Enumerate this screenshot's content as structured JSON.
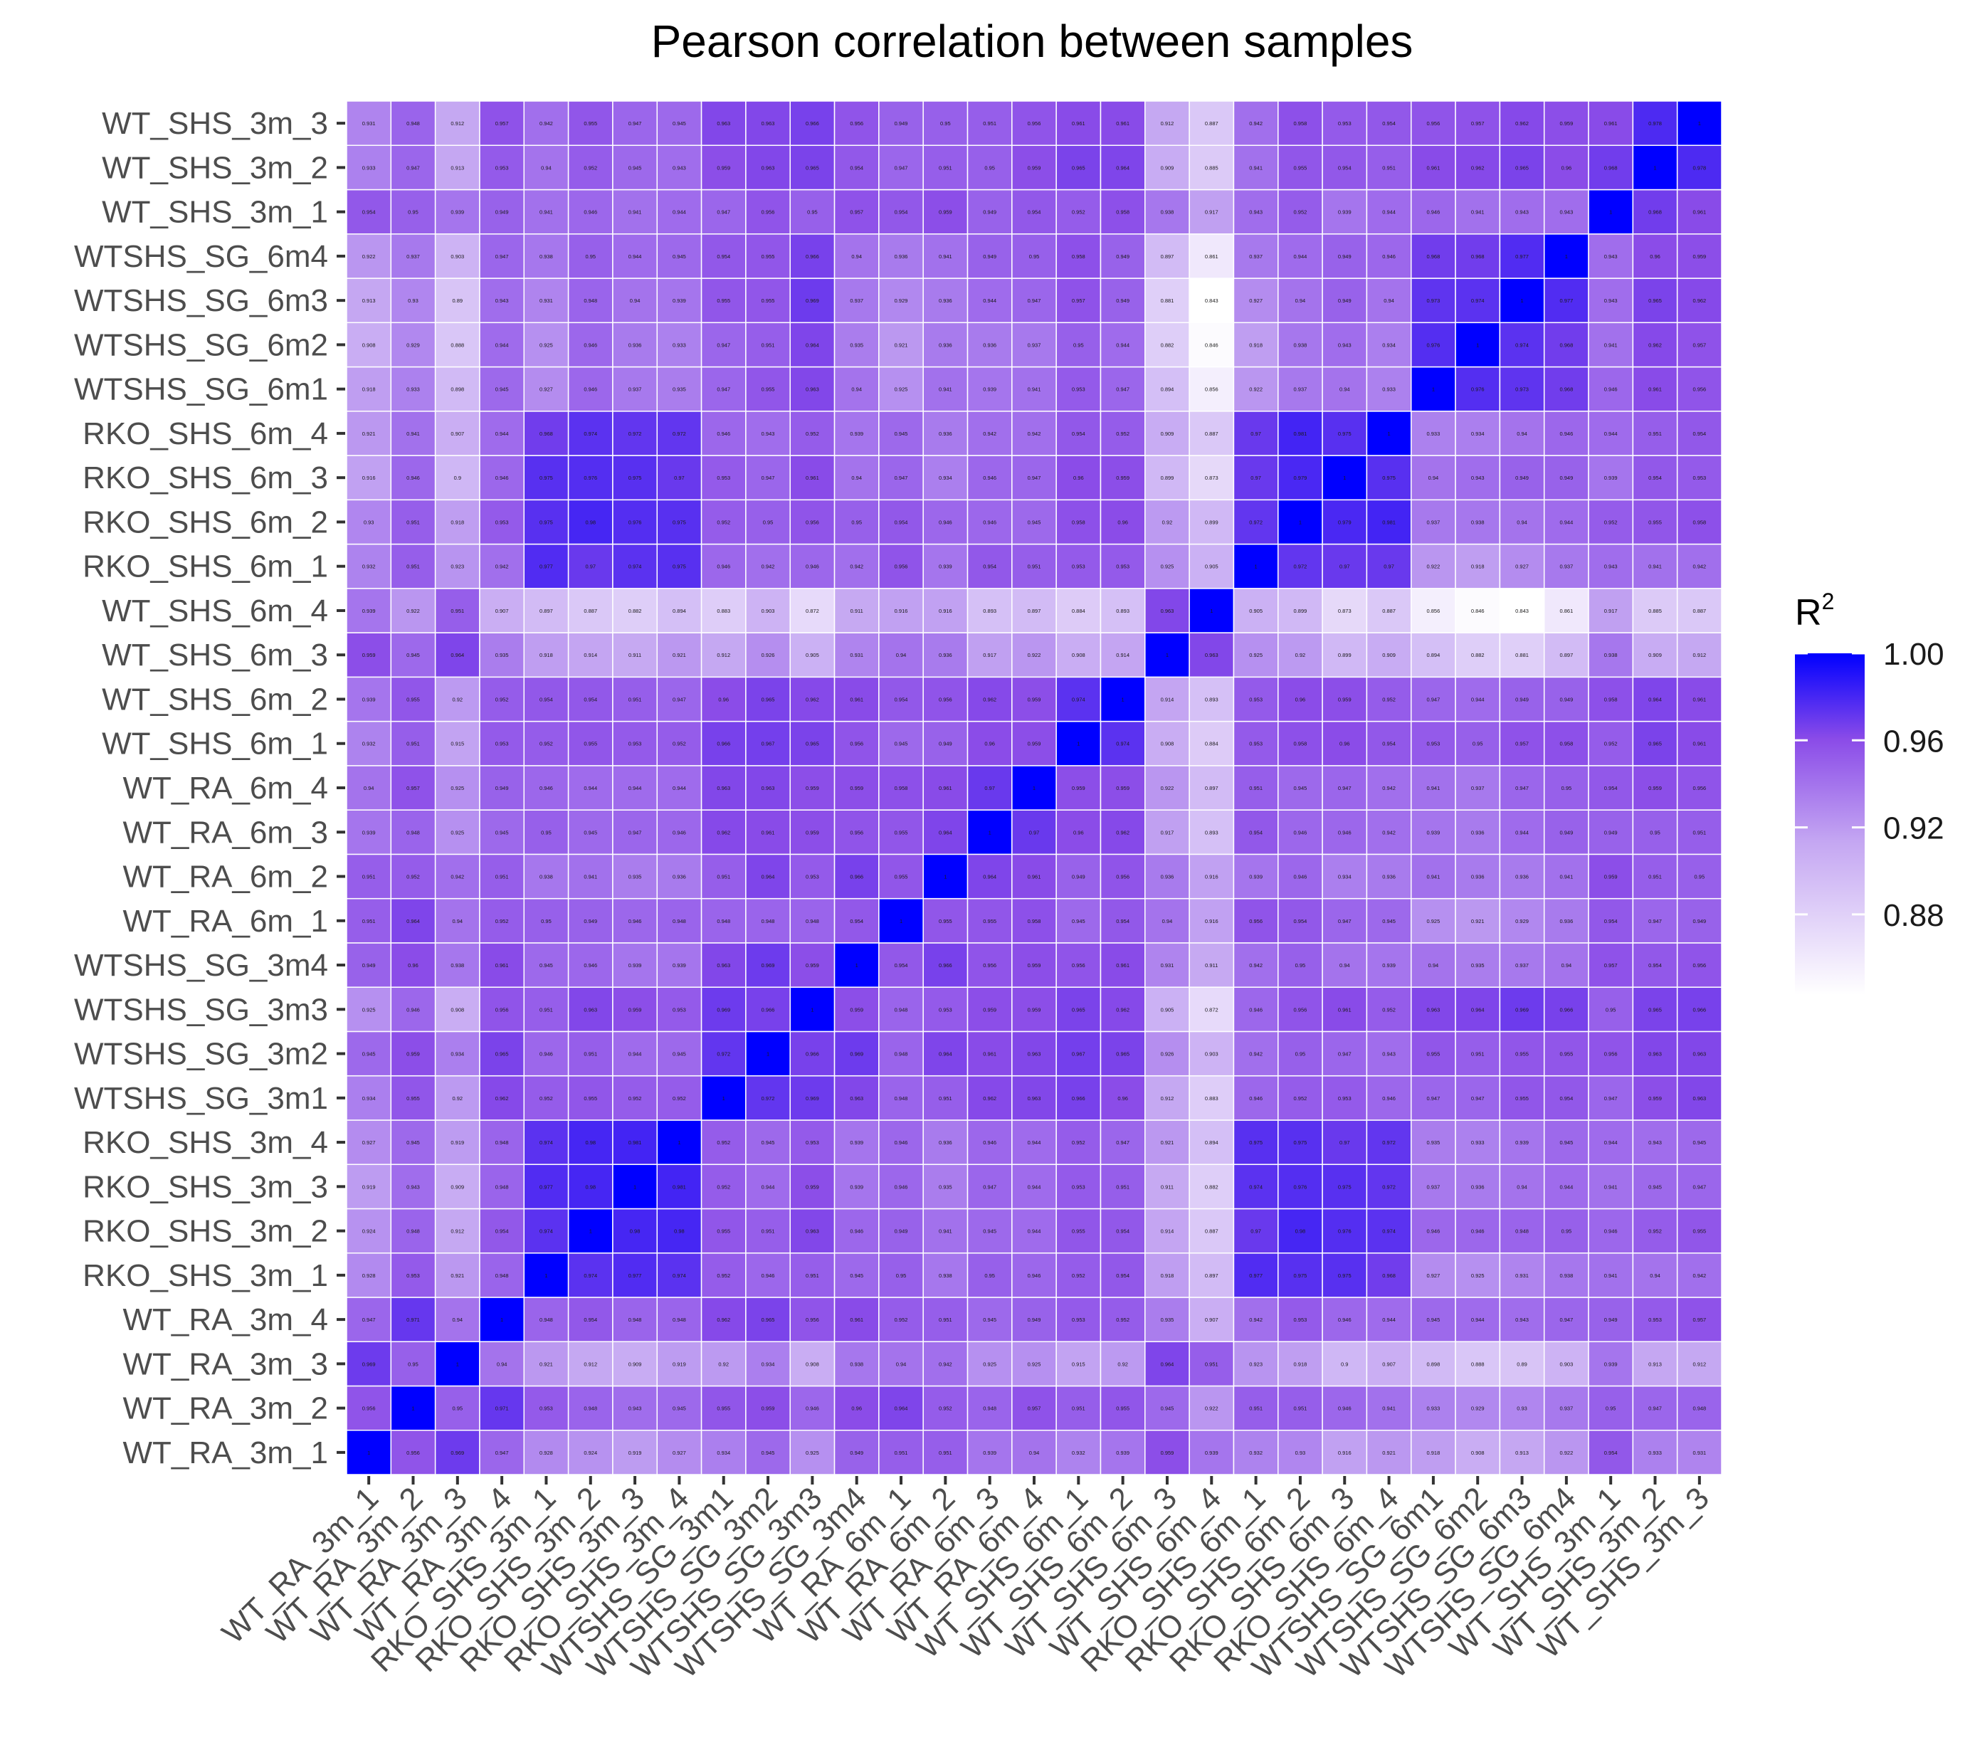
{
  "chart_data": {
    "type": "heatmap",
    "title": "Pearson correlation between samples",
    "labels": [
      "WT_RA_3m_1",
      "WT_RA_3m_2",
      "WT_RA_3m_3",
      "WT_RA_3m_4",
      "RKO_SHS_3m_1",
      "RKO_SHS_3m_2",
      "RKO_SHS_3m_3",
      "RKO_SHS_3m_4",
      "WTSHS_SG_3m1",
      "WTSHS_SG_3m2",
      "WTSHS_SG_3m3",
      "WTSHS_SG_3m4",
      "WT_RA_6m_1",
      "WT_RA_6m_2",
      "WT_RA_6m_3",
      "WT_RA_6m_4",
      "WT_SHS_6m_1",
      "WT_SHS_6m_2",
      "WT_SHS_6m_3",
      "WT_SHS_6m_4",
      "RKO_SHS_6m_1",
      "RKO_SHS_6m_2",
      "RKO_SHS_6m_3",
      "RKO_SHS_6m_4",
      "WTSHS_SG_6m1",
      "WTSHS_SG_6m2",
      "WTSHS_SG_6m3",
      "WTSHS_SG_6m4",
      "WT_SHS_3m_1",
      "WT_SHS_3m_2",
      "WT_SHS_3m_3"
    ],
    "matrix": [
      [
        1,
        0.956,
        0.969,
        0.947,
        0.928,
        0.924,
        0.919,
        0.927,
        0.934,
        0.945,
        0.925,
        0.949,
        0.951,
        0.951,
        0.939,
        0.94,
        0.932,
        0.939,
        0.959,
        0.939,
        0.932,
        0.93,
        0.916,
        0.921,
        0.918,
        0.908,
        0.913,
        0.922,
        0.954,
        0.933,
        0.931
      ],
      [
        0.956,
        1,
        0.95,
        0.971,
        0.953,
        0.948,
        0.943,
        0.945,
        0.955,
        0.959,
        0.946,
        0.96,
        0.964,
        0.952,
        0.948,
        0.957,
        0.951,
        0.955,
        0.945,
        0.922,
        0.951,
        0.951,
        0.946,
        0.941,
        0.933,
        0.929,
        0.93,
        0.937,
        0.95,
        0.947,
        0.948
      ],
      [
        0.969,
        0.95,
        1,
        0.94,
        0.921,
        0.912,
        0.909,
        0.919,
        0.92,
        0.934,
        0.908,
        0.938,
        0.94,
        0.942,
        0.925,
        0.925,
        0.915,
        0.92,
        0.964,
        0.951,
        0.923,
        0.918,
        0.9,
        0.907,
        0.898,
        0.888,
        0.89,
        0.903,
        0.939,
        0.913,
        0.912
      ],
      [
        0.947,
        0.971,
        0.94,
        1,
        0.948,
        0.954,
        0.948,
        0.948,
        0.962,
        0.965,
        0.956,
        0.961,
        0.952,
        0.951,
        0.945,
        0.949,
        0.953,
        0.952,
        0.935,
        0.907,
        0.942,
        0.953,
        0.946,
        0.944,
        0.945,
        0.944,
        0.943,
        0.947,
        0.949,
        0.953,
        0.957
      ],
      [
        0.928,
        0.953,
        0.921,
        0.948,
        1,
        0.974,
        0.977,
        0.974,
        0.952,
        0.946,
        0.951,
        0.945,
        0.95,
        0.938,
        0.95,
        0.946,
        0.952,
        0.954,
        0.918,
        0.897,
        0.977,
        0.975,
        0.975,
        0.968,
        0.927,
        0.925,
        0.931,
        0.938,
        0.941,
        0.94,
        0.942
      ],
      [
        0.924,
        0.948,
        0.912,
        0.954,
        0.974,
        1,
        0.98,
        0.98,
        0.955,
        0.951,
        0.963,
        0.946,
        0.949,
        0.941,
        0.945,
        0.944,
        0.955,
        0.954,
        0.914,
        0.887,
        0.97,
        0.98,
        0.976,
        0.974,
        0.946,
        0.946,
        0.948,
        0.95,
        0.946,
        0.952,
        0.955
      ],
      [
        0.919,
        0.943,
        0.909,
        0.948,
        0.977,
        0.98,
        1,
        0.981,
        0.952,
        0.944,
        0.959,
        0.939,
        0.946,
        0.935,
        0.947,
        0.944,
        0.953,
        0.951,
        0.911,
        0.882,
        0.974,
        0.976,
        0.975,
        0.972,
        0.937,
        0.936,
        0.94,
        0.944,
        0.941,
        0.945,
        0.947
      ],
      [
        0.927,
        0.945,
        0.919,
        0.948,
        0.974,
        0.98,
        0.981,
        1,
        0.952,
        0.945,
        0.953,
        0.939,
        0.946,
        0.936,
        0.946,
        0.944,
        0.952,
        0.947,
        0.921,
        0.894,
        0.975,
        0.975,
        0.97,
        0.972,
        0.935,
        0.933,
        0.939,
        0.945,
        0.944,
        0.943,
        0.945
      ],
      [
        0.934,
        0.955,
        0.92,
        0.962,
        0.952,
        0.955,
        0.952,
        0.952,
        1,
        0.972,
        0.969,
        0.963,
        0.948,
        0.951,
        0.962,
        0.963,
        0.966,
        0.96,
        0.912,
        0.883,
        0.946,
        0.952,
        0.953,
        0.946,
        0.947,
        0.947,
        0.955,
        0.954,
        0.947,
        0.959,
        0.963
      ],
      [
        0.945,
        0.959,
        0.934,
        0.965,
        0.946,
        0.951,
        0.944,
        0.945,
        0.972,
        1,
        0.966,
        0.969,
        0.948,
        0.964,
        0.961,
        0.963,
        0.967,
        0.965,
        0.926,
        0.903,
        0.942,
        0.95,
        0.947,
        0.943,
        0.955,
        0.951,
        0.955,
        0.955,
        0.956,
        0.963,
        0.963
      ],
      [
        0.925,
        0.946,
        0.908,
        0.956,
        0.951,
        0.963,
        0.959,
        0.953,
        0.969,
        0.966,
        1,
        0.959,
        0.948,
        0.953,
        0.959,
        0.959,
        0.965,
        0.962,
        0.905,
        0.872,
        0.946,
        0.956,
        0.961,
        0.952,
        0.963,
        0.964,
        0.969,
        0.966,
        0.95,
        0.965,
        0.966
      ],
      [
        0.949,
        0.96,
        0.938,
        0.961,
        0.945,
        0.946,
        0.939,
        0.939,
        0.963,
        0.969,
        0.959,
        1,
        0.954,
        0.966,
        0.956,
        0.959,
        0.956,
        0.961,
        0.931,
        0.911,
        0.942,
        0.95,
        0.94,
        0.939,
        0.94,
        0.935,
        0.937,
        0.94,
        0.957,
        0.954,
        0.956
      ],
      [
        0.951,
        0.964,
        0.94,
        0.952,
        0.95,
        0.949,
        0.946,
        0.948,
        0.948,
        0.948,
        0.948,
        0.954,
        1,
        0.955,
        0.955,
        0.958,
        0.945,
        0.954,
        0.94,
        0.916,
        0.956,
        0.954,
        0.947,
        0.945,
        0.925,
        0.921,
        0.929,
        0.936,
        0.954,
        0.947,
        0.949
      ],
      [
        0.951,
        0.952,
        0.942,
        0.951,
        0.938,
        0.941,
        0.935,
        0.936,
        0.951,
        0.964,
        0.953,
        0.966,
        0.955,
        1,
        0.964,
        0.961,
        0.949,
        0.956,
        0.936,
        0.916,
        0.939,
        0.946,
        0.934,
        0.936,
        0.941,
        0.936,
        0.936,
        0.941,
        0.959,
        0.951,
        0.95
      ],
      [
        0.939,
        0.948,
        0.925,
        0.945,
        0.95,
        0.945,
        0.947,
        0.946,
        0.962,
        0.961,
        0.959,
        0.956,
        0.955,
        0.964,
        1,
        0.97,
        0.96,
        0.962,
        0.917,
        0.893,
        0.954,
        0.946,
        0.946,
        0.942,
        0.939,
        0.936,
        0.944,
        0.949,
        0.949,
        0.95,
        0.951
      ],
      [
        0.94,
        0.957,
        0.925,
        0.949,
        0.946,
        0.944,
        0.944,
        0.944,
        0.963,
        0.963,
        0.959,
        0.959,
        0.958,
        0.961,
        0.97,
        1,
        0.959,
        0.959,
        0.922,
        0.897,
        0.951,
        0.945,
        0.947,
        0.942,
        0.941,
        0.937,
        0.947,
        0.95,
        0.954,
        0.959,
        0.956
      ],
      [
        0.932,
        0.951,
        0.915,
        0.953,
        0.952,
        0.955,
        0.953,
        0.952,
        0.966,
        0.967,
        0.965,
        0.956,
        0.945,
        0.949,
        0.96,
        0.959,
        1,
        0.974,
        0.908,
        0.884,
        0.953,
        0.958,
        0.96,
        0.954,
        0.953,
        0.95,
        0.957,
        0.958,
        0.952,
        0.965,
        0.961
      ],
      [
        0.939,
        0.955,
        0.92,
        0.952,
        0.954,
        0.954,
        0.951,
        0.947,
        0.96,
        0.965,
        0.962,
        0.961,
        0.954,
        0.956,
        0.962,
        0.959,
        0.974,
        1,
        0.914,
        0.893,
        0.953,
        0.96,
        0.959,
        0.952,
        0.947,
        0.944,
        0.949,
        0.949,
        0.958,
        0.964,
        0.961
      ],
      [
        0.959,
        0.945,
        0.964,
        0.935,
        0.918,
        0.914,
        0.911,
        0.921,
        0.912,
        0.926,
        0.905,
        0.931,
        0.94,
        0.936,
        0.917,
        0.922,
        0.908,
        0.914,
        1,
        0.963,
        0.925,
        0.92,
        0.899,
        0.909,
        0.894,
        0.882,
        0.881,
        0.897,
        0.938,
        0.909,
        0.912
      ],
      [
        0.939,
        0.922,
        0.951,
        0.907,
        0.897,
        0.887,
        0.882,
        0.894,
        0.883,
        0.903,
        0.872,
        0.911,
        0.916,
        0.916,
        0.893,
        0.897,
        0.884,
        0.893,
        0.963,
        1,
        0.905,
        0.899,
        0.873,
        0.887,
        0.856,
        0.846,
        0.843,
        0.861,
        0.917,
        0.885,
        0.887
      ],
      [
        0.932,
        0.951,
        0.923,
        0.942,
        0.977,
        0.97,
        0.974,
        0.975,
        0.946,
        0.942,
        0.946,
        0.942,
        0.956,
        0.939,
        0.954,
        0.951,
        0.953,
        0.953,
        0.925,
        0.905,
        1,
        0.972,
        0.97,
        0.97,
        0.922,
        0.918,
        0.927,
        0.937,
        0.943,
        0.941,
        0.942
      ],
      [
        0.93,
        0.951,
        0.918,
        0.953,
        0.975,
        0.98,
        0.976,
        0.975,
        0.952,
        0.95,
        0.956,
        0.95,
        0.954,
        0.946,
        0.946,
        0.945,
        0.958,
        0.96,
        0.92,
        0.899,
        0.972,
        1,
        0.979,
        0.981,
        0.937,
        0.938,
        0.94,
        0.944,
        0.952,
        0.955,
        0.958
      ],
      [
        0.916,
        0.946,
        0.9,
        0.946,
        0.975,
        0.976,
        0.975,
        0.97,
        0.953,
        0.947,
        0.961,
        0.94,
        0.947,
        0.934,
        0.946,
        0.947,
        0.96,
        0.959,
        0.899,
        0.873,
        0.97,
        0.979,
        1,
        0.975,
        0.94,
        0.943,
        0.949,
        0.949,
        0.939,
        0.954,
        0.953
      ],
      [
        0.921,
        0.941,
        0.907,
        0.944,
        0.968,
        0.974,
        0.972,
        0.972,
        0.946,
        0.943,
        0.952,
        0.939,
        0.945,
        0.936,
        0.942,
        0.942,
        0.954,
        0.952,
        0.909,
        0.887,
        0.97,
        0.981,
        0.975,
        1,
        0.933,
        0.934,
        0.94,
        0.946,
        0.944,
        0.951,
        0.954
      ],
      [
        0.918,
        0.933,
        0.898,
        0.945,
        0.927,
        0.946,
        0.937,
        0.935,
        0.947,
        0.955,
        0.963,
        0.94,
        0.925,
        0.941,
        0.939,
        0.941,
        0.953,
        0.947,
        0.894,
        0.856,
        0.922,
        0.937,
        0.94,
        0.933,
        1,
        0.976,
        0.973,
        0.968,
        0.946,
        0.961,
        0.956
      ],
      [
        0.908,
        0.929,
        0.888,
        0.944,
        0.925,
        0.946,
        0.936,
        0.933,
        0.947,
        0.951,
        0.964,
        0.935,
        0.921,
        0.936,
        0.936,
        0.937,
        0.95,
        0.944,
        0.882,
        0.846,
        0.918,
        0.938,
        0.943,
        0.934,
        0.976,
        1,
        0.974,
        0.968,
        0.941,
        0.962,
        0.957
      ],
      [
        0.913,
        0.93,
        0.89,
        0.943,
        0.931,
        0.948,
        0.94,
        0.939,
        0.955,
        0.955,
        0.969,
        0.937,
        0.929,
        0.936,
        0.944,
        0.947,
        0.957,
        0.949,
        0.881,
        0.843,
        0.927,
        0.94,
        0.949,
        0.94,
        0.973,
        0.974,
        1,
        0.977,
        0.943,
        0.965,
        0.962
      ],
      [
        0.922,
        0.937,
        0.903,
        0.947,
        0.938,
        0.95,
        0.944,
        0.945,
        0.954,
        0.955,
        0.966,
        0.94,
        0.936,
        0.941,
        0.949,
        0.95,
        0.958,
        0.949,
        0.897,
        0.861,
        0.937,
        0.944,
        0.949,
        0.946,
        0.968,
        0.968,
        0.977,
        1,
        0.943,
        0.96,
        0.959
      ],
      [
        0.954,
        0.95,
        0.939,
        0.949,
        0.941,
        0.946,
        0.941,
        0.944,
        0.947,
        0.956,
        0.95,
        0.957,
        0.954,
        0.959,
        0.949,
        0.954,
        0.952,
        0.958,
        0.938,
        0.917,
        0.943,
        0.952,
        0.939,
        0.944,
        0.946,
        0.941,
        0.943,
        0.943,
        1,
        0.968,
        0.961
      ],
      [
        0.933,
        0.947,
        0.913,
        0.953,
        0.94,
        0.952,
        0.945,
        0.943,
        0.959,
        0.963,
        0.965,
        0.954,
        0.947,
        0.951,
        0.95,
        0.959,
        0.965,
        0.964,
        0.909,
        0.885,
        0.941,
        0.955,
        0.954,
        0.951,
        0.961,
        0.962,
        0.965,
        0.96,
        0.968,
        1,
        0.978
      ],
      [
        0.931,
        0.948,
        0.912,
        0.957,
        0.942,
        0.955,
        0.947,
        0.945,
        0.963,
        0.963,
        0.966,
        0.956,
        0.949,
        0.95,
        0.951,
        0.956,
        0.961,
        0.961,
        0.912,
        0.887,
        0.942,
        0.958,
        0.953,
        0.954,
        0.956,
        0.957,
        0.962,
        0.959,
        0.961,
        0.978,
        1
      ]
    ],
    "color_scale": {
      "low": "#ffffff",
      "high": "#0000ff",
      "mid_color": "#8a4be8",
      "domain": [
        0.843,
        1.0
      ]
    },
    "legend": {
      "title": "R",
      "title_superscript": "2",
      "placement": "right",
      "ticks": [
        "1.00",
        "0.96",
        "0.92",
        "0.88"
      ],
      "tick_values": [
        1.0,
        0.96,
        0.92,
        0.88
      ]
    },
    "diagonal_label": "1",
    "grid_color": "#ffffff"
  }
}
